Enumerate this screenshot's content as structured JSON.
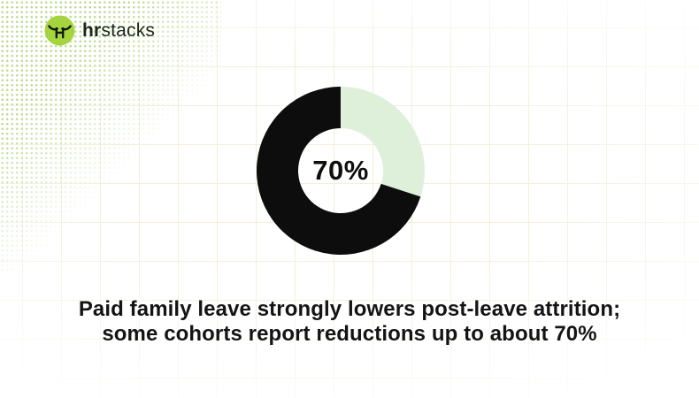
{
  "logo": {
    "brand_bold": "hr",
    "brand_rest": "stacks",
    "icon_bg_color": "#a5d43e",
    "icon_glyph_color": "#10180e"
  },
  "chart_data": {
    "type": "pie",
    "variant": "donut",
    "center_label": "70%",
    "start_angle_deg": 0,
    "direction": "clockwise",
    "outer_radius": 95,
    "inner_radius": 48,
    "segments": [
      {
        "value": 30,
        "color": "#def0da"
      },
      {
        "value": 70,
        "color": "#0d0d0d"
      }
    ]
  },
  "caption": {
    "line1": "Paid family leave strongly lowers post-leave attrition;",
    "line2": "some cohorts report reductions up to about 70%"
  },
  "theme": {
    "background": "#ffffff",
    "grid_color": "#f3efd9",
    "dots_color": "#b9dc90",
    "text_color": "#141414",
    "accent_green": "#a5d43e",
    "slice_dark": "#0d0d0d",
    "slice_light": "#def0da"
  }
}
